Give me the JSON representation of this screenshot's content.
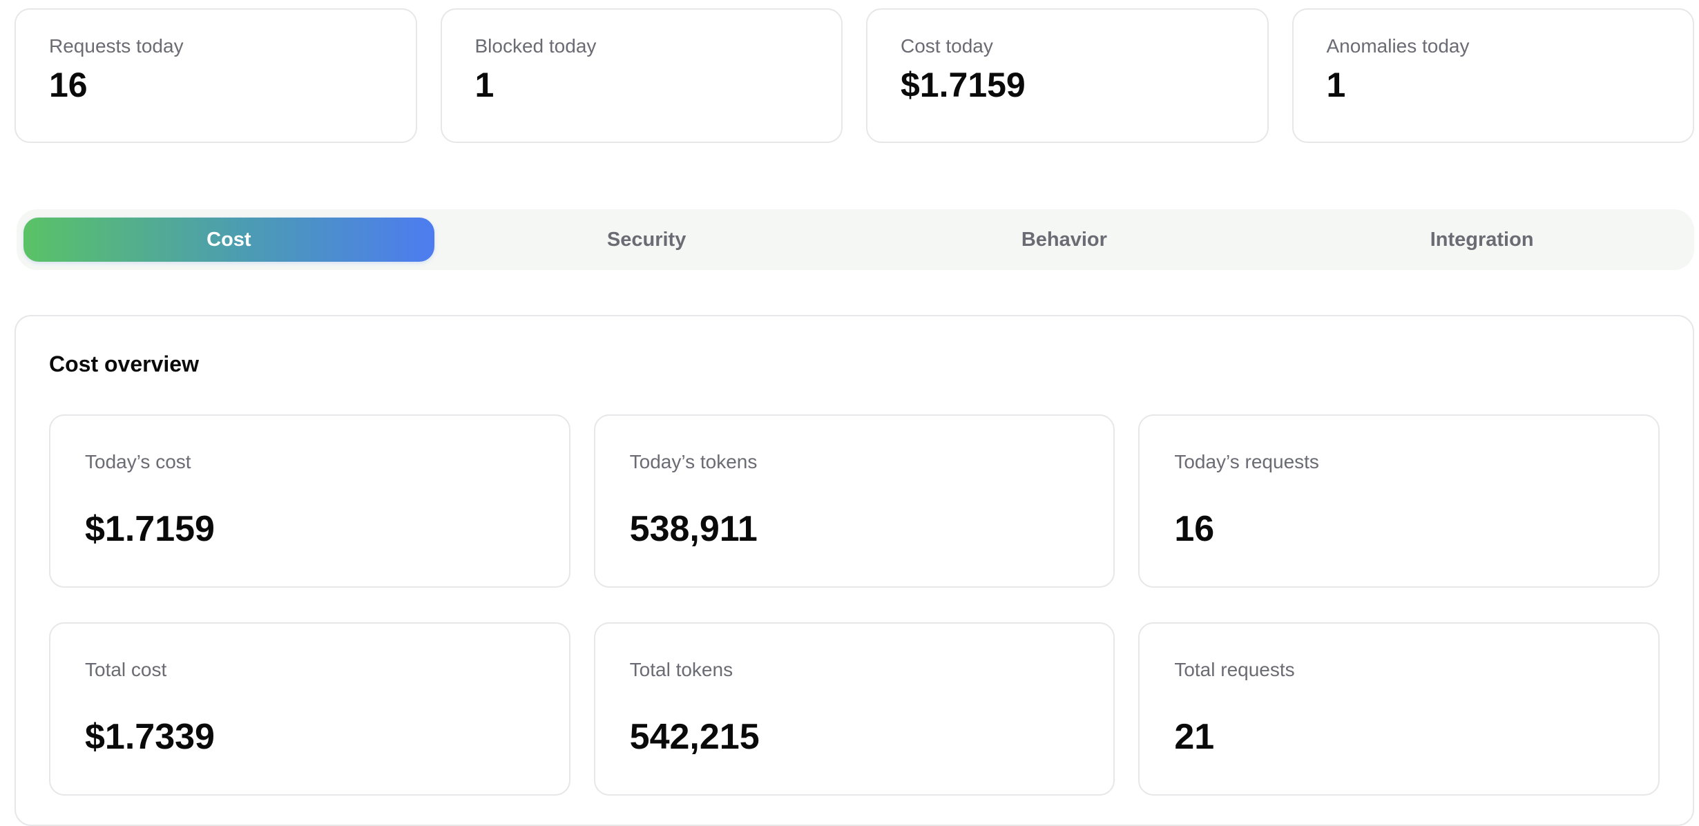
{
  "stats": [
    {
      "label": "Requests today",
      "value": "16"
    },
    {
      "label": "Blocked today",
      "value": "1"
    },
    {
      "label": "Cost today",
      "value": "$1.7159"
    },
    {
      "label": "Anomalies today",
      "value": "1"
    }
  ],
  "tabs": [
    {
      "label": "Cost",
      "active": true
    },
    {
      "label": "Security",
      "active": false
    },
    {
      "label": "Behavior",
      "active": false
    },
    {
      "label": "Integration",
      "active": false
    }
  ],
  "colors": {
    "tab_gradient_start": "#5ac266",
    "tab_gradient_end": "#4d7cf0"
  },
  "cost_overview": {
    "title": "Cost overview",
    "metrics": [
      {
        "label": "Today’s cost",
        "value": "$1.7159"
      },
      {
        "label": "Today’s tokens",
        "value": "538,911"
      },
      {
        "label": "Today’s requests",
        "value": "16"
      },
      {
        "label": "Total cost",
        "value": "$1.7339"
      },
      {
        "label": "Total tokens",
        "value": "542,215"
      },
      {
        "label": "Total requests",
        "value": "21"
      }
    ]
  }
}
